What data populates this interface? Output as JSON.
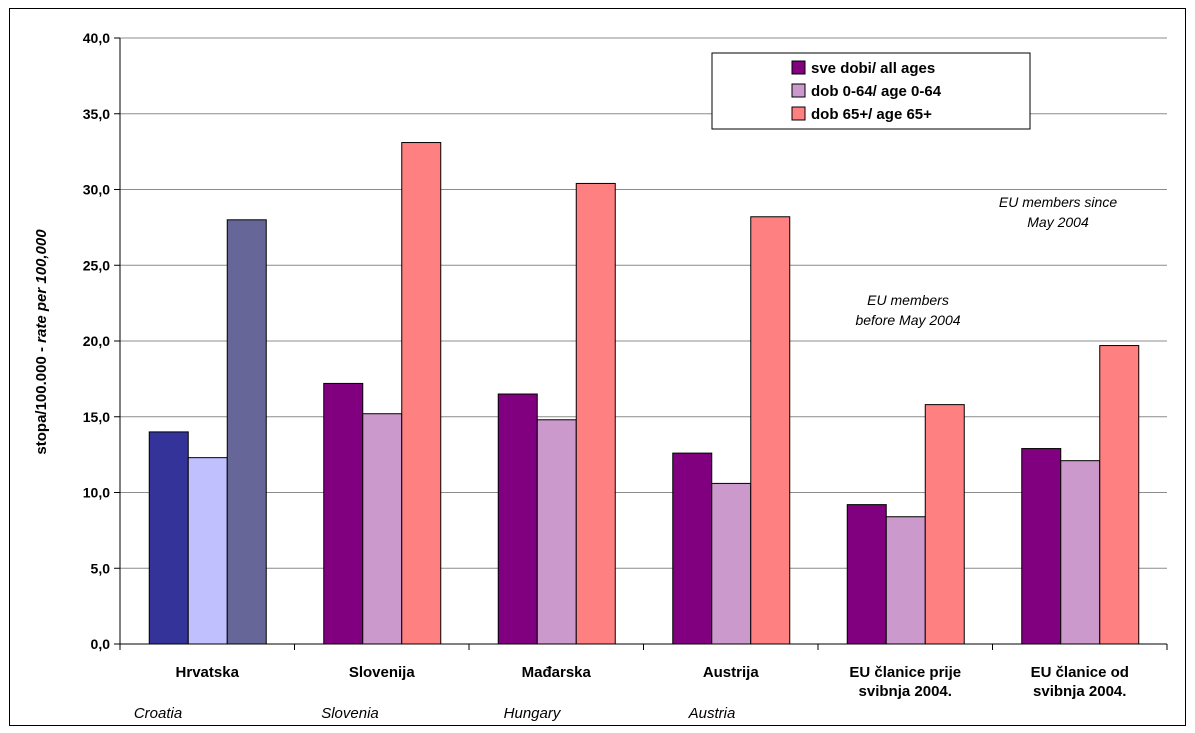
{
  "chart_data": {
    "type": "bar",
    "categories": [
      "Hrvatska",
      "Slovenija",
      "Mađarska",
      "Austrija",
      "EU članice prije svibnja 2004.",
      "EU članice od svibnja 2004."
    ],
    "category_lines": [
      [
        "Hrvatska"
      ],
      [
        "Slovenija"
      ],
      [
        "Mađarska"
      ],
      [
        "Austrija"
      ],
      [
        "EU članice prije",
        "svibnja 2004."
      ],
      [
        "EU članice od",
        "svibnja 2004."
      ]
    ],
    "category_subtitles": [
      "Croatia",
      "Slovenia",
      "Hungary",
      "Austria",
      "",
      ""
    ],
    "series": [
      {
        "name": "sve dobi/ all ages",
        "values": [
          14.0,
          17.2,
          16.5,
          12.6,
          9.2,
          12.9
        ],
        "color": "#800080"
      },
      {
        "name": "dob 0-64/ age 0-64",
        "values": [
          12.3,
          15.2,
          14.8,
          10.6,
          8.4,
          12.1
        ],
        "color": "#CC99CC"
      },
      {
        "name": "dob 65+/ age 65+",
        "values": [
          28.0,
          33.1,
          30.4,
          28.2,
          15.8,
          19.7
        ],
        "color": "#FF8080"
      }
    ],
    "highlight_category_colors": [
      "#333399",
      "#C0C0FF",
      "#666699"
    ],
    "ylabel": "stopa/100.000 - rate per 100,000",
    "ylabel_parts": [
      "stopa/100.000 - ",
      "rate per 100,000"
    ],
    "ylim": [
      0,
      40
    ],
    "yticks": [
      "0,0",
      "5,0",
      "10,0",
      "15,0",
      "20,0",
      "25,0",
      "30,0",
      "35,0",
      "40,0"
    ],
    "grid": true,
    "legend_position": "top-right",
    "annotations": [
      {
        "lines": [
          "EU members since",
          "May 2004"
        ]
      },
      {
        "lines": [
          "EU members",
          "before May 2004"
        ]
      }
    ]
  }
}
